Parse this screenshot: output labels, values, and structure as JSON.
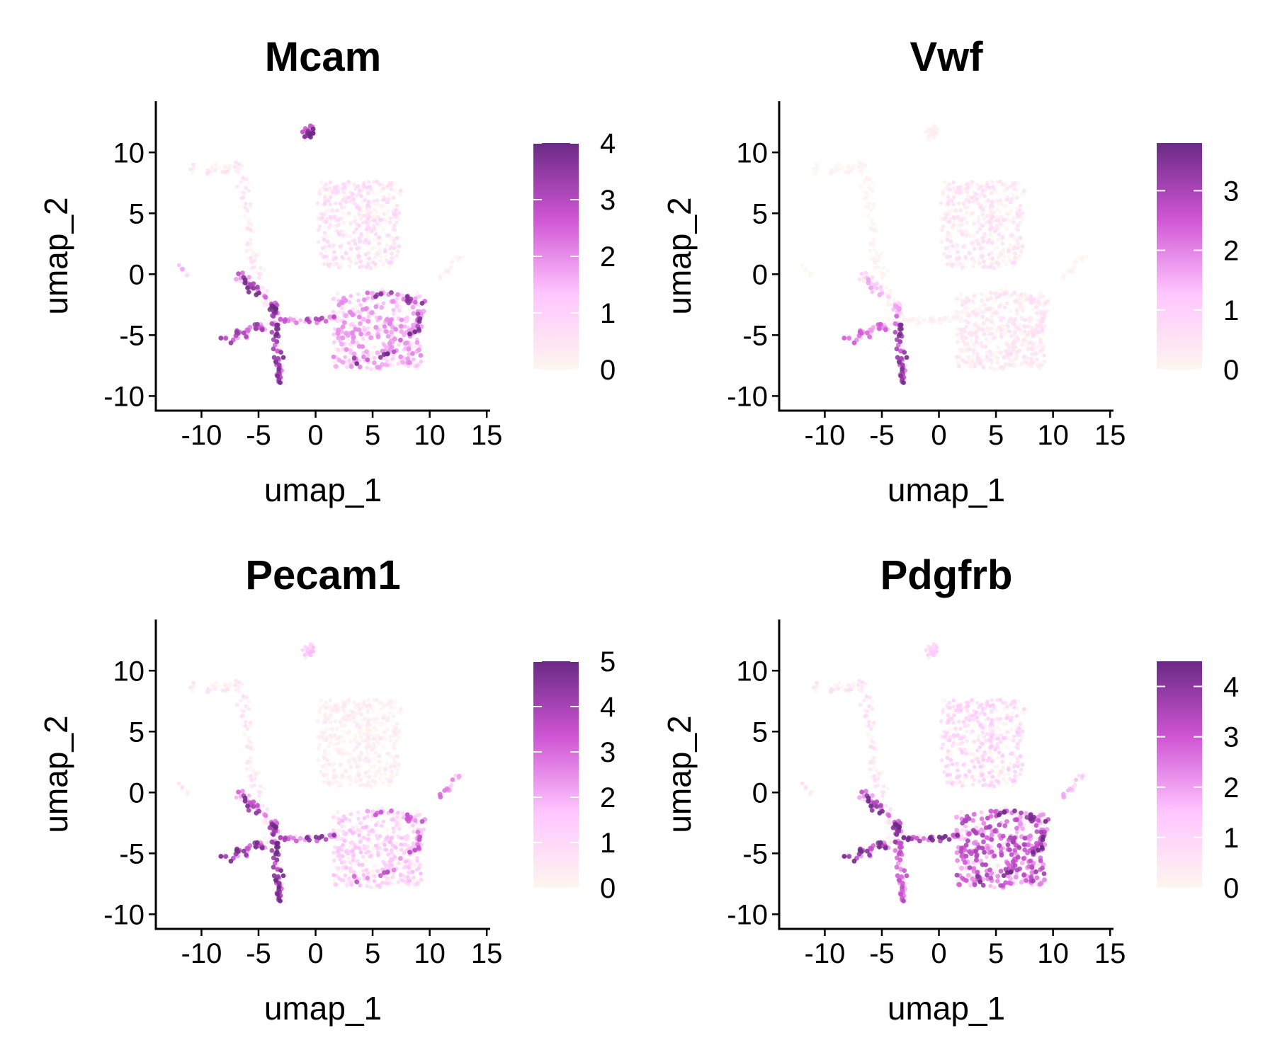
{
  "colorscale": [
    "#fdf6ee",
    "#ffc6ff",
    "#cf55d4",
    "#6b2a85"
  ],
  "chart_data": [
    {
      "type": "scatter",
      "title": "Mcam",
      "xlabel": "umap_1",
      "ylabel": "umap_2",
      "xlim": [
        -14,
        15.3
      ],
      "ylim": [
        -11.2,
        14.2
      ],
      "xticks": [
        -10,
        -5,
        0,
        5,
        10,
        15
      ],
      "yticks": [
        -10,
        -5,
        0,
        5,
        10
      ],
      "legend": "right",
      "colorbar": {
        "min": 0,
        "max": 4,
        "ticks": [
          0,
          1,
          2,
          3,
          4
        ]
      },
      "expression": {
        "top_cluster": 3.0,
        "left_branch": 0.5,
        "upper_cloud": 0.7,
        "right_tip": 0.2,
        "far_left_tip": 1.5,
        "branch_upper": 3.2,
        "branch_lower_left": 2.5,
        "branch_lower": 3.0,
        "branch_right_arm": 2.3,
        "lower_cloud": 1.5,
        "lower_cloud_edge": 2.8
      }
    },
    {
      "type": "scatter",
      "title": "Vwf",
      "xlabel": "umap_1",
      "ylabel": "umap_2",
      "xlim": [
        -14,
        15.3
      ],
      "ylim": [
        -11.2,
        14.2
      ],
      "xticks": [
        -10,
        -5,
        0,
        5,
        10,
        15
      ],
      "yticks": [
        -10,
        -5,
        0,
        5,
        10
      ],
      "legend": "right",
      "colorbar": {
        "min": 0,
        "max": 3.8,
        "ticks": [
          0,
          1,
          2,
          3
        ]
      },
      "expression": {
        "top_cluster": 0.2,
        "left_branch": 0.15,
        "upper_cloud": 0.5,
        "right_tip": 0.1,
        "far_left_tip": 0.05,
        "branch_upper": 1.2,
        "branch_lower_left": 1.8,
        "branch_lower": 2.8,
        "branch_right_arm": 0.2,
        "lower_cloud": 0.4,
        "lower_cloud_edge": 0.5
      }
    },
    {
      "type": "scatter",
      "title": "Pecam1",
      "xlabel": "umap_1",
      "ylabel": "umap_2",
      "xlim": [
        -14,
        15.3
      ],
      "ylim": [
        -11.2,
        14.2
      ],
      "xticks": [
        -10,
        -5,
        0,
        5,
        10,
        15
      ],
      "yticks": [
        -10,
        -5,
        0,
        5,
        10
      ],
      "legend": "right",
      "colorbar": {
        "min": 0,
        "max": 5,
        "ticks": [
          0,
          1,
          2,
          3,
          4,
          5
        ]
      },
      "expression": {
        "top_cluster": 1.3,
        "left_branch": 0.6,
        "upper_cloud": 0.4,
        "right_tip": 2.2,
        "far_left_tip": 0.8,
        "branch_upper": 3.5,
        "branch_lower_left": 3.5,
        "branch_lower": 4.0,
        "branch_right_arm": 3.4,
        "lower_cloud": 1.3,
        "lower_cloud_edge": 2.6
      }
    },
    {
      "type": "scatter",
      "title": "Pdgfrb",
      "xlabel": "umap_1",
      "ylabel": "umap_2",
      "xlim": [
        -14,
        15.3
      ],
      "ylim": [
        -11.2,
        14.2
      ],
      "xticks": [
        -10,
        -5,
        0,
        5,
        10,
        15
      ],
      "yticks": [
        -10,
        -5,
        0,
        5,
        10
      ],
      "legend": "right",
      "colorbar": {
        "min": 0,
        "max": 4.5,
        "ticks": [
          0,
          1,
          2,
          3,
          4
        ]
      },
      "expression": {
        "top_cluster": 1.0,
        "left_branch": 0.6,
        "upper_cloud": 1.0,
        "right_tip": 1.4,
        "far_left_tip": 0.8,
        "branch_upper": 3.5,
        "branch_lower_left": 3.2,
        "branch_lower": 2.5,
        "branch_right_arm": 3.8,
        "lower_cloud": 2.6,
        "lower_cloud_edge": 3.4
      }
    }
  ]
}
